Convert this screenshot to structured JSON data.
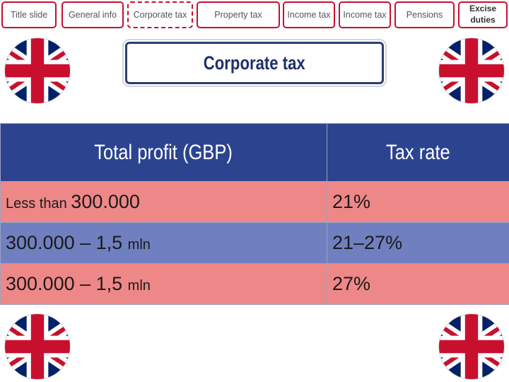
{
  "nav": {
    "tabs": [
      {
        "label": "Title slide"
      },
      {
        "label": "General info"
      },
      {
        "label": "Corporate tax",
        "active": true
      },
      {
        "label": "Property tax"
      },
      {
        "label": "Income tax"
      },
      {
        "label": "Income tax"
      },
      {
        "label": "Pensions"
      },
      {
        "label": "Excise duties"
      }
    ]
  },
  "page": {
    "title": "Corporate tax"
  },
  "table": {
    "headers": [
      "Total profit (GBP)",
      "Tax rate"
    ],
    "rows": [
      {
        "prefix": "Less than ",
        "amount": "300.000",
        "unit": "",
        "rate": "21%"
      },
      {
        "prefix": "",
        "amount": "300.000 – 1,5 ",
        "unit": "mln",
        "rate": "21–27%"
      },
      {
        "prefix": "",
        "amount": "300.000 – 1,5 ",
        "unit": "mln",
        "rate": "27%"
      }
    ]
  },
  "colors": {
    "header_blue": "#2c438f",
    "row_red": "#ee8787",
    "row_blue": "#6f7fbf",
    "tab_border": "#c8102e"
  },
  "icons": [
    "uk-flag-icon"
  ]
}
